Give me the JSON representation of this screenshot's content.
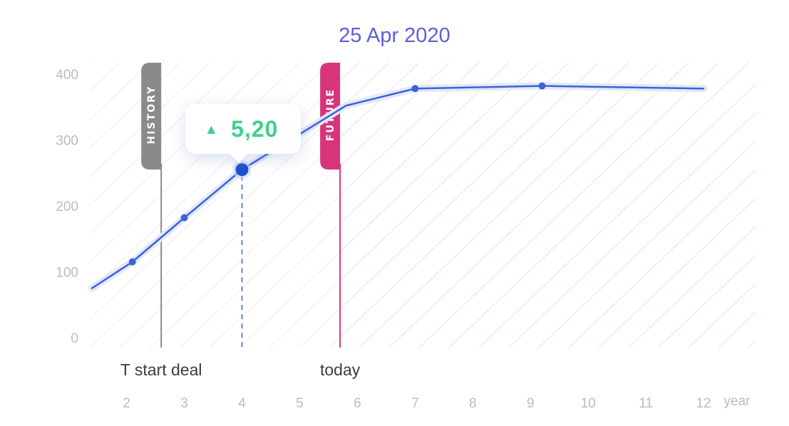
{
  "chart_data": {
    "type": "line",
    "date_label": "25 Apr 2020",
    "y_ticks": [
      "0",
      "100",
      "200",
      "300",
      "400"
    ],
    "x_ticks": [
      "2",
      "3",
      "4",
      "5",
      "6",
      "7",
      "8",
      "9",
      "10",
      "11",
      "12"
    ],
    "x_unit": "year",
    "ylim": [
      0,
      400
    ],
    "xlim": [
      1.35,
      12.9
    ],
    "grid": false,
    "series": [
      {
        "values": [
          {
            "x": 1.4,
            "y": 75
          },
          {
            "x": 2.1,
            "y": 115
          },
          {
            "x": 3.0,
            "y": 182
          },
          {
            "x": 4.0,
            "y": 255
          },
          {
            "x": 5.8,
            "y": 352
          },
          {
            "x": 7.0,
            "y": 378
          },
          {
            "x": 9.2,
            "y": 382
          },
          {
            "x": 12.0,
            "y": 378
          }
        ],
        "color": "#3a63d6",
        "markers": [
          {
            "x": 2.1,
            "y": 115
          },
          {
            "x": 3.0,
            "y": 182
          },
          {
            "x": 7.0,
            "y": 378
          },
          {
            "x": 9.2,
            "y": 382
          }
        ]
      }
    ],
    "selected_point": {
      "x": 4.0,
      "y": 255,
      "change": "5,20",
      "direction": "up"
    },
    "markers_vertical": [
      {
        "x": 2.6,
        "tab": "HISTORY",
        "label": "T start deal",
        "color": "#8a8a8a"
      },
      {
        "x": 5.7,
        "tab": "FUTURE",
        "label": "today",
        "color": "#d6357c"
      }
    ],
    "colors": {
      "line": "#3a63d6",
      "history_tab": "#8a8a8a",
      "future_tab": "#d6357c",
      "change_up": "#3fd08b",
      "date_label": "#5b60d8"
    }
  }
}
